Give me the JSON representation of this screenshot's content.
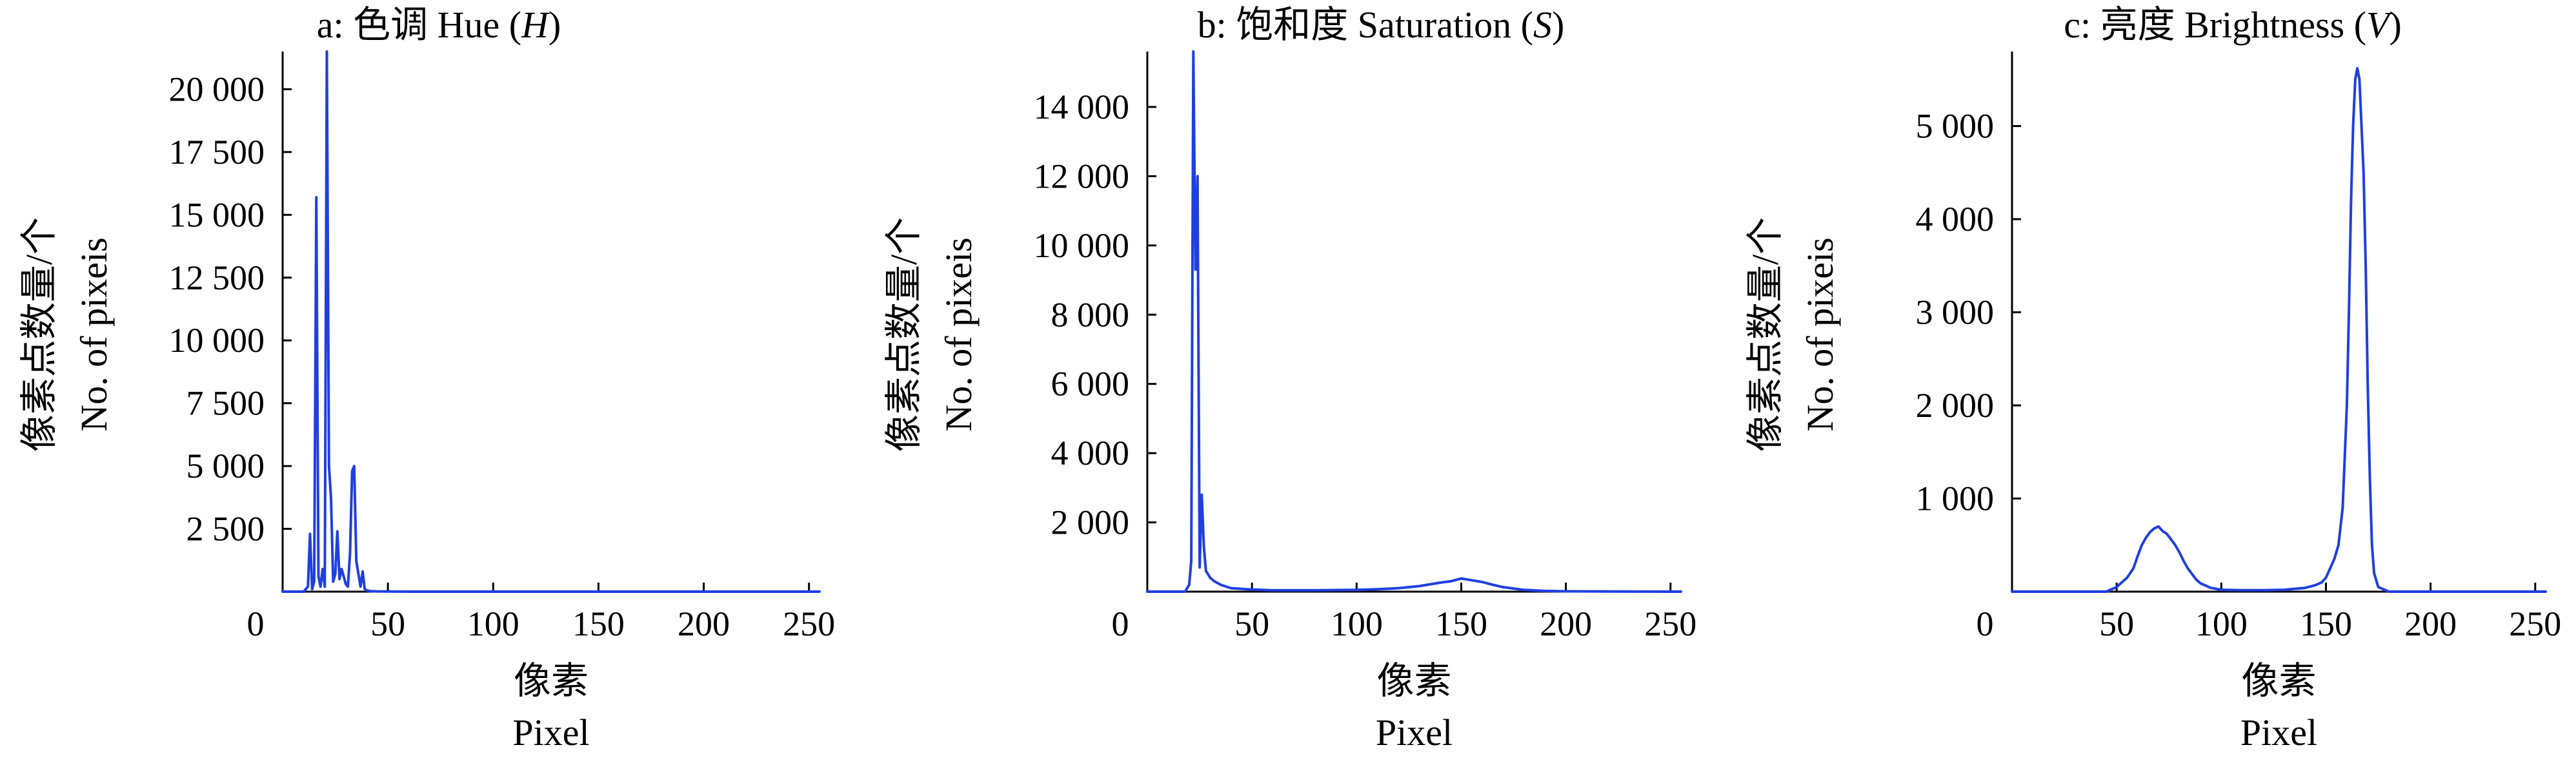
{
  "colors": {
    "series": "#1f3fe0",
    "axis": "#000000"
  },
  "chart_data": [
    {
      "type": "line",
      "title": "a: 色调 Hue (H)",
      "title_prefix": "a: 色调 Hue (",
      "title_var": "H",
      "title_suffix": ")",
      "xlabel_cn": "像素",
      "xlabel_en": "Pixel",
      "ylabel_cn": "像素点数量/个",
      "ylabel_en": "No. of pixeis",
      "xlim": [
        0,
        255
      ],
      "ylim": [
        0,
        21500
      ],
      "xticks": [
        0,
        50,
        100,
        150,
        200,
        250
      ],
      "xtick_labels": [
        "0",
        "50",
        "100",
        "150",
        "200",
        "250"
      ],
      "yticks": [
        2500,
        5000,
        7500,
        10000,
        12500,
        15000,
        17500,
        20000
      ],
      "ytick_labels": [
        "2 500",
        "5 000",
        "7 500",
        "10 000",
        "12 500",
        "15 000",
        "17 500",
        "20 000"
      ],
      "series": [
        {
          "x": [
            0,
            10,
            12,
            13,
            14,
            15,
            16,
            17,
            18,
            19,
            20,
            21,
            22,
            23,
            24,
            25,
            26,
            27,
            28,
            29,
            30,
            31,
            32,
            33,
            34,
            35,
            36,
            37,
            38,
            39,
            40,
            41,
            42,
            45,
            60,
            100,
            150,
            200,
            255
          ],
          "y": [
            0,
            0,
            200,
            2300,
            100,
            400,
            15700,
            600,
            200,
            900,
            200,
            21500,
            5000,
            3700,
            400,
            700,
            2400,
            500,
            900,
            600,
            300,
            200,
            1500,
            4800,
            5000,
            1200,
            700,
            200,
            800,
            100,
            50,
            30,
            20,
            10,
            0,
            0,
            0,
            0,
            0
          ]
        }
      ]
    },
    {
      "type": "line",
      "title": "b: 饱和度 Saturation (S)",
      "title_prefix": "b: 饱和度 Saturation (",
      "title_var": "S",
      "title_suffix": ")",
      "xlabel_cn": "像素",
      "xlabel_en": "Pixel",
      "ylabel_cn": "像素点数量/个",
      "ylabel_en": "No. of pixeis",
      "xlim": [
        0,
        255
      ],
      "ylim": [
        0,
        15600
      ],
      "xticks": [
        0,
        50,
        100,
        150,
        200,
        250
      ],
      "xtick_labels": [
        "0",
        "50",
        "100",
        "150",
        "200",
        "250"
      ],
      "yticks": [
        2000,
        4000,
        6000,
        8000,
        10000,
        12000,
        14000
      ],
      "ytick_labels": [
        "2 000",
        "4 000",
        "6 000",
        "8 000",
        "10 000",
        "12 000",
        "14 000"
      ],
      "series": [
        {
          "x": [
            0,
            18,
            20,
            21,
            22,
            23,
            24,
            25,
            26,
            27,
            28,
            29,
            30,
            32,
            35,
            40,
            50,
            60,
            80,
            100,
            110,
            120,
            130,
            140,
            145,
            150,
            155,
            160,
            165,
            170,
            180,
            190,
            200,
            250,
            255
          ],
          "y": [
            0,
            0,
            200,
            900,
            15600,
            9300,
            12000,
            700,
            2800,
            1300,
            600,
            500,
            400,
            300,
            200,
            100,
            60,
            40,
            40,
            50,
            70,
            100,
            160,
            260,
            300,
            380,
            330,
            280,
            200,
            130,
            50,
            20,
            10,
            0,
            0
          ]
        }
      ]
    },
    {
      "type": "line",
      "title": "c: 亮度 Brightness (V)",
      "title_prefix": "c: 亮度 Brightness (",
      "title_var": "V",
      "title_suffix": ")",
      "xlabel_cn": "像素",
      "xlabel_en": "Pixel",
      "ylabel_cn": "像素点数量/个",
      "ylabel_en": "No. of pixeis",
      "xlim": [
        0,
        255
      ],
      "ylim": [
        0,
        5800
      ],
      "xticks": [
        0,
        50,
        100,
        150,
        200,
        250
      ],
      "xtick_labels": [
        "0",
        "50",
        "100",
        "150",
        "200",
        "250"
      ],
      "yticks": [
        1000,
        2000,
        3000,
        4000,
        5000
      ],
      "ytick_labels": [
        "1 000",
        "2 000",
        "3 000",
        "4 000",
        "5 000"
      ],
      "series": [
        {
          "x": [
            0,
            45,
            50,
            55,
            58,
            60,
            62,
            64,
            66,
            68,
            70,
            72,
            74,
            76,
            78,
            80,
            82,
            84,
            86,
            88,
            90,
            95,
            100,
            110,
            120,
            130,
            140,
            145,
            148,
            150,
            152,
            154,
            156,
            158,
            160,
            161,
            162,
            163,
            164,
            165,
            166,
            167,
            168,
            169,
            170,
            171,
            172,
            173,
            175,
            180,
            255
          ],
          "y": [
            0,
            0,
            50,
            150,
            250,
            380,
            500,
            580,
            640,
            680,
            700,
            650,
            620,
            560,
            500,
            420,
            330,
            250,
            190,
            130,
            90,
            40,
            20,
            15,
            15,
            20,
            40,
            70,
            100,
            150,
            250,
            350,
            500,
            900,
            2000,
            3000,
            4200,
            5000,
            5500,
            5620,
            5500,
            5000,
            4500,
            3500,
            2200,
            1200,
            500,
            200,
            50,
            0,
            0
          ]
        }
      ]
    }
  ]
}
